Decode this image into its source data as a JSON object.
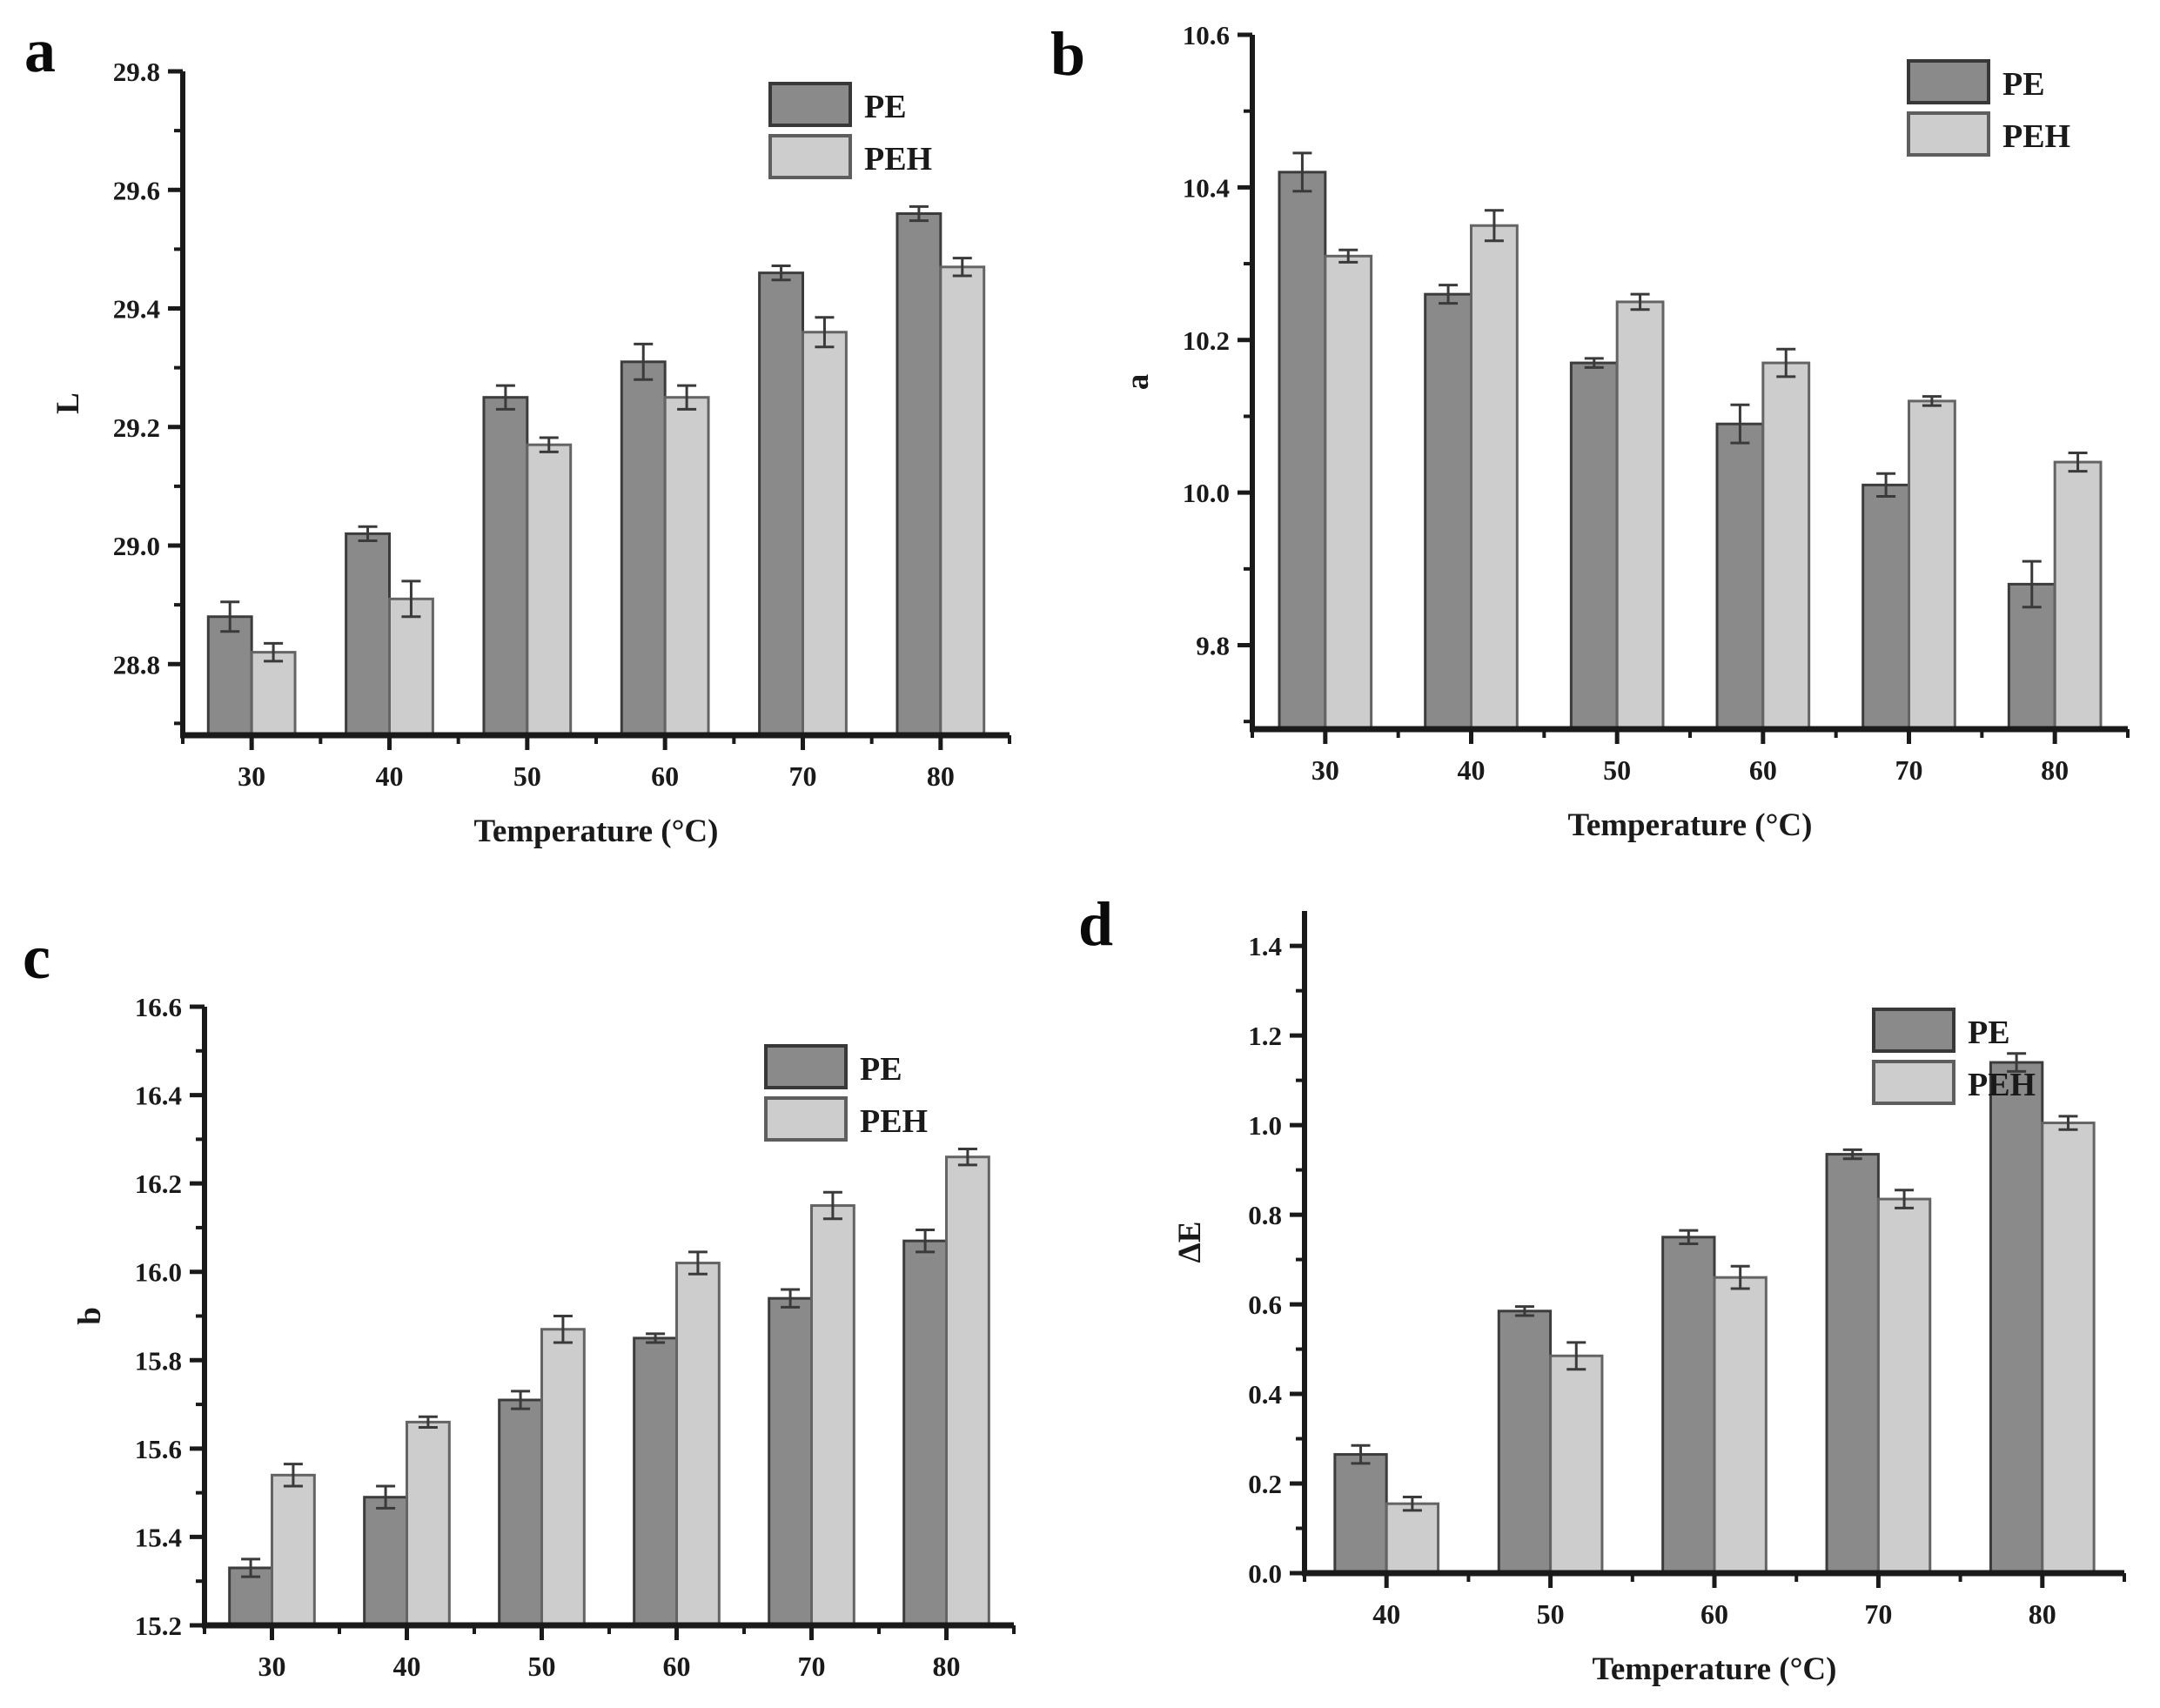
{
  "figure_title": "",
  "legend": {
    "entries": [
      "PE",
      "PEH"
    ]
  },
  "colors": {
    "pe_fill": "#8a8a8a",
    "pe_stroke": "#3c3c3c",
    "peh_fill": "#cdcdcd",
    "peh_stroke": "#646464",
    "axis": "#1a1a1a",
    "error_bar": "#3a3a3a",
    "text": "#1a1a1a"
  },
  "chart_data": [
    {
      "id": "a",
      "panel_label": "a",
      "type": "bar",
      "title": "",
      "xlabel": "Temperature (°C)",
      "ylabel": "L",
      "categories": [
        "30",
        "40",
        "50",
        "60",
        "70",
        "80"
      ],
      "ylim": [
        28.68,
        29.8
      ],
      "yticks": [
        28.8,
        29.0,
        29.2,
        29.4,
        29.6,
        29.8
      ],
      "ytick_decimals": 1,
      "grid": false,
      "legend_position": "top-right",
      "series": [
        {
          "name": "PE",
          "values": [
            28.88,
            29.02,
            29.25,
            29.31,
            29.46,
            29.56
          ],
          "errors": [
            0.025,
            0.012,
            0.02,
            0.03,
            0.012,
            0.012
          ]
        },
        {
          "name": "PEH",
          "values": [
            28.82,
            28.91,
            29.17,
            29.25,
            29.36,
            29.47
          ],
          "errors": [
            0.015,
            0.03,
            0.012,
            0.02,
            0.025,
            0.015
          ]
        }
      ]
    },
    {
      "id": "b",
      "panel_label": "b",
      "type": "bar",
      "title": "",
      "xlabel": "Temperature (°C)",
      "ylabel": "a",
      "categories": [
        "30",
        "40",
        "50",
        "60",
        "70",
        "80"
      ],
      "ylim": [
        9.69,
        10.6
      ],
      "yticks": [
        9.8,
        10.0,
        10.2,
        10.4,
        10.6
      ],
      "ytick_decimals": 1,
      "grid": false,
      "legend_position": "top-right",
      "series": [
        {
          "name": "PE",
          "values": [
            10.42,
            10.26,
            10.17,
            10.09,
            10.01,
            9.88
          ],
          "errors": [
            0.025,
            0.012,
            0.006,
            0.025,
            0.015,
            0.03
          ]
        },
        {
          "name": "PEH",
          "values": [
            10.31,
            10.35,
            10.25,
            10.17,
            10.12,
            10.04
          ],
          "errors": [
            0.008,
            0.02,
            0.01,
            0.018,
            0.006,
            0.012
          ]
        }
      ]
    },
    {
      "id": "c",
      "panel_label": "c",
      "type": "bar",
      "title": "",
      "xlabel": "Temperature (°C)",
      "ylabel": "b",
      "categories": [
        "30",
        "40",
        "50",
        "60",
        "70",
        "80"
      ],
      "ylim": [
        15.2,
        16.6
      ],
      "yticks": [
        15.2,
        15.4,
        15.6,
        15.8,
        16.0,
        16.2,
        16.4,
        16.6
      ],
      "ytick_decimals": 1,
      "grid": false,
      "legend_position": "top-right",
      "series": [
        {
          "name": "PE",
          "values": [
            15.33,
            15.49,
            15.71,
            15.85,
            15.94,
            16.07
          ],
          "errors": [
            0.02,
            0.025,
            0.02,
            0.01,
            0.02,
            0.025
          ]
        },
        {
          "name": "PEH",
          "values": [
            15.54,
            15.66,
            15.87,
            16.02,
            16.15,
            16.26
          ],
          "errors": [
            0.025,
            0.012,
            0.03,
            0.025,
            0.03,
            0.018
          ]
        }
      ]
    },
    {
      "id": "d",
      "panel_label": "d",
      "type": "bar",
      "title": "",
      "xlabel": "Temperature (°C)",
      "ylabel": "ΔE",
      "categories": [
        "40",
        "50",
        "60",
        "70",
        "80"
      ],
      "ylim": [
        0.0,
        1.478
      ],
      "yticks": [
        0.0,
        0.2,
        0.4,
        0.6,
        0.8,
        1.0,
        1.2,
        1.4
      ],
      "ytick_decimals": 1,
      "grid": false,
      "legend_position": "top-right",
      "series": [
        {
          "name": "PE",
          "values": [
            0.265,
            0.585,
            0.75,
            0.935,
            1.14
          ],
          "errors": [
            0.02,
            0.01,
            0.015,
            0.01,
            0.02
          ]
        },
        {
          "name": "PEH",
          "values": [
            0.155,
            0.485,
            0.66,
            0.835,
            1.005
          ],
          "errors": [
            0.015,
            0.03,
            0.025,
            0.02,
            0.015
          ]
        }
      ]
    }
  ]
}
